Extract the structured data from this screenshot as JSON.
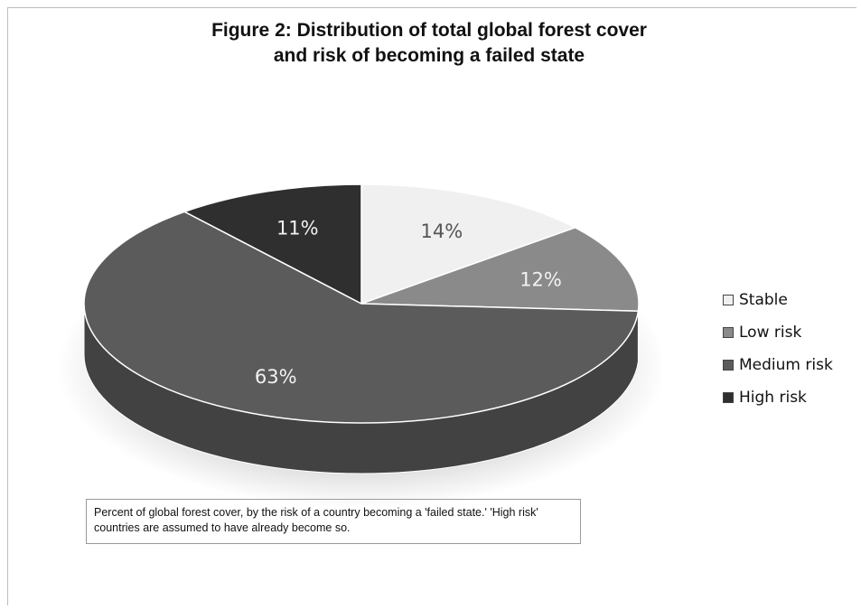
{
  "chart_data": {
    "type": "pie",
    "title_lines": [
      "Figure 2: Distribution of total global forest cover",
      "and risk of becoming a failed state"
    ],
    "slices": [
      {
        "label": "Stable",
        "value": 14,
        "display": "14%",
        "color": "#f0f0f0",
        "label_color": "#555555"
      },
      {
        "label": "Low risk",
        "value": 12,
        "display": "12%",
        "color": "#8a8a8a",
        "label_color": "#f2f2f2"
      },
      {
        "label": "Medium risk",
        "value": 63,
        "display": "63%",
        "color": "#5b5b5b",
        "label_color": "#f2f2f2"
      },
      {
        "label": "High risk",
        "value": 11,
        "display": "11%",
        "color": "#2f2f2f",
        "label_color": "#f2f2f2"
      }
    ],
    "legend_position": "right",
    "note": "Percent of global forest cover, by the risk of a country becoming a 'failed state.'  'High risk' countries are assumed to have already become so."
  }
}
